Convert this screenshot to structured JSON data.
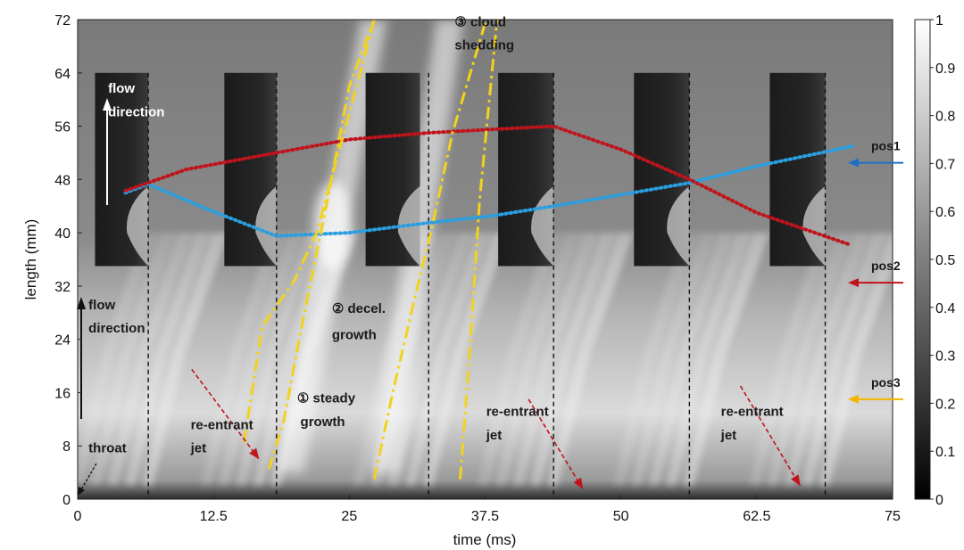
{
  "chart_data": {
    "type": "heatmap",
    "xlabel": "time (ms)",
    "ylabel": "length (mm)",
    "xlim": [
      0,
      75
    ],
    "ylim": [
      0,
      72
    ],
    "xticks": [
      "0",
      "12.5",
      "25",
      "37.5",
      "50",
      "62.5",
      "75"
    ],
    "xtick_values": [
      0,
      12.5,
      25,
      37.5,
      50,
      62.5,
      75
    ],
    "yticks": [
      "0",
      "8",
      "16",
      "24",
      "32",
      "40",
      "48",
      "56",
      "64",
      "72"
    ],
    "ytick_values": [
      0,
      8,
      16,
      24,
      32,
      40,
      48,
      56,
      64,
      72
    ],
    "colorbar": {
      "range": [
        0,
        1
      ],
      "ticks": [
        "0",
        "0.1",
        "0.2",
        "0.3",
        "0.4",
        "0.5",
        "0.6",
        "0.7",
        "0.8",
        "0.9",
        "1"
      ],
      "tick_values": [
        0,
        0.1,
        0.2,
        0.3,
        0.4,
        0.5,
        0.6,
        0.7,
        0.8,
        0.9,
        1
      ],
      "colormap": "gray"
    },
    "cycle_boundaries_ms": [
      6.5,
      18.3,
      32.3,
      43.8,
      56.3,
      68.8
    ],
    "inset_frames_ms": [
      [
        1.6,
        6.5
      ],
      [
        13.5,
        18.3
      ],
      [
        26.5,
        31.5
      ],
      [
        38.7,
        43.8
      ],
      [
        51.2,
        56.3
      ],
      [
        63.7,
        68.8
      ]
    ],
    "inset_frame_length_mm": [
      35,
      64
    ],
    "series": [
      {
        "role": "pos1-trajectory",
        "color": "#2a9fe0",
        "x": [
          4.4,
          6.5,
          12,
          18.3,
          25,
          32.3,
          38,
          43.8,
          50,
          56.3,
          62.5,
          71.3
        ],
        "y": [
          46,
          47.3,
          43.5,
          39.5,
          40,
          41.5,
          42.5,
          44,
          45.7,
          47.5,
          50,
          53
        ]
      },
      {
        "role": "pos2-trajectory",
        "color": "#c0141c",
        "x": [
          4.4,
          10,
          18.3,
          25,
          32.3,
          38,
          43.8,
          50,
          56.3,
          62.5,
          71.1
        ],
        "y": [
          46.3,
          49.5,
          52,
          54,
          55,
          55.5,
          56,
          52.5,
          48,
          43,
          38.2
        ]
      },
      {
        "role": "cavity-front-1",
        "color": "#f2d31c",
        "x": [
          15.3,
          17,
          18.3,
          20,
          22,
          24,
          26,
          27.3
        ],
        "y": [
          8.5,
          26,
          29,
          33,
          40,
          52,
          64,
          72
        ]
      },
      {
        "role": "cavity-front-2",
        "color": "#f2d31c",
        "x": [
          17.6,
          19,
          20.5,
          23,
          25,
          27.3
        ],
        "y": [
          4.5,
          12,
          25,
          45,
          62,
          72
        ]
      },
      {
        "role": "cavity-front-3",
        "color": "#f2d31c",
        "x": [
          27.3,
          29,
          30,
          31,
          32.5,
          34.5,
          37.6
        ],
        "y": [
          3,
          16,
          23,
          30,
          40,
          55,
          72
        ]
      },
      {
        "role": "cavity-front-4",
        "color": "#f2d31c",
        "x": [
          35.2,
          36,
          37,
          38.6
        ],
        "y": [
          3,
          20,
          45,
          72
        ]
      },
      {
        "role": "re-entrant-jet-1",
        "color": "#c0141c",
        "x": [
          10.5,
          16.7
        ],
        "y": [
          19.5,
          6
        ]
      },
      {
        "role": "re-entrant-jet-2",
        "color": "#c0141c",
        "x": [
          41.5,
          46.5
        ],
        "y": [
          15,
          1.5
        ]
      },
      {
        "role": "re-entrant-jet-3",
        "color": "#c0141c",
        "x": [
          61,
          66.5
        ],
        "y": [
          17,
          2
        ]
      }
    ],
    "annotations": [
      {
        "text": "flow",
        "x": 2.8,
        "y": 61
      },
      {
        "text": "direction",
        "x": 2.8,
        "y": 57.5
      },
      {
        "text": "flow",
        "x": 1.0,
        "y": 28.5
      },
      {
        "text": "direction",
        "x": 1.0,
        "y": 25
      },
      {
        "text": "throat",
        "x": 1.0,
        "y": 7
      },
      {
        "text": "re-entrant",
        "x": 10.4,
        "y": 10.5
      },
      {
        "text": "jet",
        "x": 10.4,
        "y": 7
      },
      {
        "text": "re-entrant",
        "x": 37.6,
        "y": 12.5
      },
      {
        "text": "jet",
        "x": 37.6,
        "y": 9
      },
      {
        "text": "re-entrant",
        "x": 59.2,
        "y": 12.5
      },
      {
        "text": "jet",
        "x": 59.2,
        "y": 9
      },
      {
        "text": "① steady",
        "x": 20.2,
        "y": 14.5
      },
      {
        "text": "growth",
        "x": 20.5,
        "y": 11
      },
      {
        "text": "② decel.",
        "x": 23.4,
        "y": 28
      },
      {
        "text": "growth",
        "x": 23.4,
        "y": 24
      },
      {
        "text": "③ cloud",
        "x": 34.7,
        "y": 71
      },
      {
        "text": "shedding",
        "x": 34.7,
        "y": 67.5
      }
    ],
    "probes": [
      {
        "label": "pos1",
        "y": 50.5,
        "color": "#1f6fc4"
      },
      {
        "label": "pos2",
        "y": 32.5,
        "color": "#c0141c"
      },
      {
        "label": "pos3",
        "y": 15,
        "color": "#f5b400"
      }
    ]
  }
}
